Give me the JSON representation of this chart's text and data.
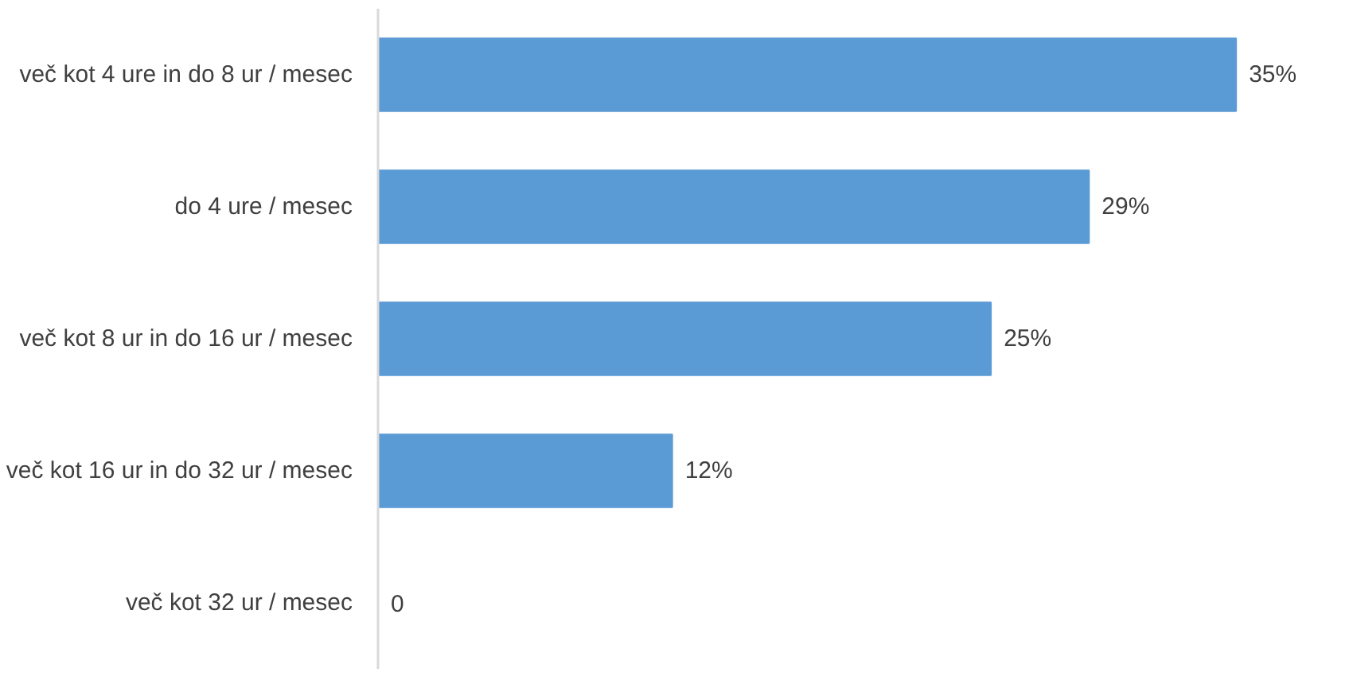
{
  "chart_data": {
    "type": "bar",
    "orientation": "horizontal",
    "categories": [
      "več kot 4 ure in do 8 ur / mesec",
      "do 4 ure / mesec",
      "več kot 8 ur in do 16 ur / mesec",
      "več kot 16 ur in do 32 ur / mesec",
      "več kot 32 ur / mesec"
    ],
    "values": [
      35,
      29,
      25,
      12,
      0
    ],
    "value_labels": [
      "35%",
      "29%",
      "25%",
      "12%",
      "0"
    ],
    "color": "#5b9bd5",
    "grid": false
  }
}
